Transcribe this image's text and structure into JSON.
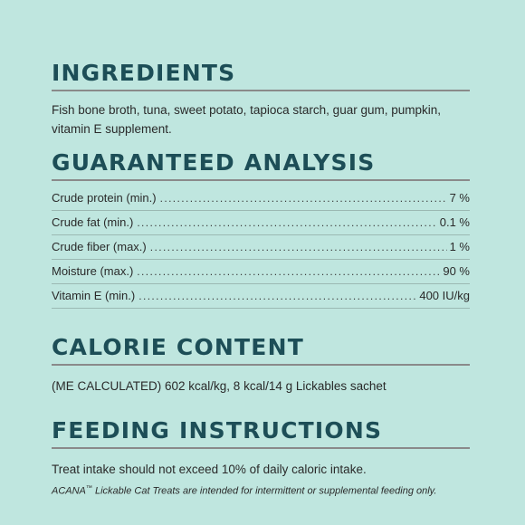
{
  "ingredients": {
    "heading": "INGREDIENTS",
    "text": "Fish bone broth, tuna, sweet potato, tapioca starch, guar gum, pumpkin, vitamin E supplement."
  },
  "analysis": {
    "heading": "GUARANTEED ANALYSIS",
    "rows": [
      {
        "label": "Crude protein (min.)",
        "value": "7 %"
      },
      {
        "label": "Crude fat (min.)",
        "value": "0.1 %"
      },
      {
        "label": "Crude fiber (max.)",
        "value": "1 %"
      },
      {
        "label": "Moisture (max.)",
        "value": "90 %"
      },
      {
        "label": "Vitamin E (min.)",
        "value": "400 IU/kg"
      }
    ]
  },
  "calorie": {
    "heading": "CALORIE CONTENT",
    "text": "(ME CALCULATED) 602 kcal/kg, 8 kcal/14 g Lickables sachet"
  },
  "feeding": {
    "heading": "FEEDING INSTRUCTIONS",
    "text": "Treat intake should not exceed 10% of daily caloric intake.",
    "note_brand": "ACANA",
    "note_tm": "™",
    "note_rest": " Lickable Cat Treats are intended for intermittent or supplemental feeding only."
  }
}
